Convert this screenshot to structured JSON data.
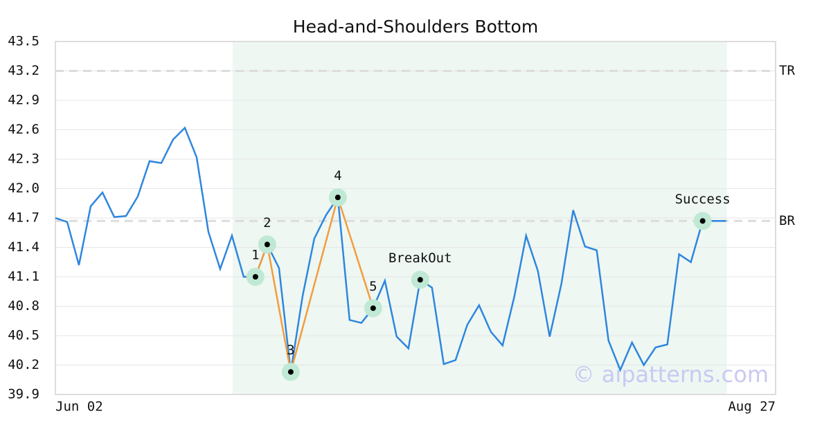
{
  "chart_data": {
    "type": "line",
    "title": "Head-and-Shoulders Bottom",
    "series": [
      {
        "color": "#2e86de",
        "values": [
          41.7,
          41.66,
          41.22,
          41.82,
          41.96,
          41.71,
          41.72,
          41.92,
          42.28,
          42.26,
          42.5,
          42.62,
          42.32,
          41.56,
          41.18,
          41.52,
          41.1,
          41.1,
          41.43,
          41.19,
          40.13,
          40.9,
          41.49,
          41.73,
          41.91,
          40.66,
          40.63,
          40.78,
          41.06,
          40.49,
          40.37,
          41.07,
          40.99,
          40.21,
          40.25,
          40.61,
          40.81,
          40.54,
          40.4,
          40.9,
          41.52,
          41.16,
          40.49,
          41.03,
          41.78,
          41.41,
          41.37,
          40.45,
          40.15,
          40.43,
          40.2,
          40.38,
          40.41,
          41.33,
          41.25,
          41.67,
          41.67,
          41.67
        ]
      }
    ],
    "xlim": [
      0,
      61.2
    ],
    "xticks": [
      {
        "value": 0,
        "label": "Jun 02"
      },
      {
        "value": 61.2,
        "label": "Aug 27"
      }
    ],
    "ylim": [
      39.9,
      43.5
    ],
    "yticks": [
      39.9,
      40.2,
      40.5,
      40.8,
      41.1,
      41.4,
      41.7,
      {
        "value": 42,
        "label": "42.0"
      },
      42.3,
      42.6,
      42.9,
      43.2,
      43.5
    ],
    "grid": true,
    "shaded_x": [
      15.06,
      57.06
    ],
    "pattern_color": "#f39c3d",
    "pattern_points": [
      {
        "index": 17,
        "label": "1"
      },
      {
        "index": 18,
        "label": "2"
      },
      {
        "index": 20,
        "label": "3"
      },
      {
        "index": 24,
        "label": "4"
      },
      {
        "index": 27,
        "label": "5"
      }
    ],
    "events": [
      {
        "index": 31,
        "label": "BreakOut"
      },
      {
        "index": 55,
        "label": "Success"
      }
    ],
    "levels": [
      {
        "value": 43.2,
        "label": "TR"
      },
      {
        "value": 41.67,
        "label": "BR"
      }
    ],
    "watermark": "© aipatterns.com"
  }
}
